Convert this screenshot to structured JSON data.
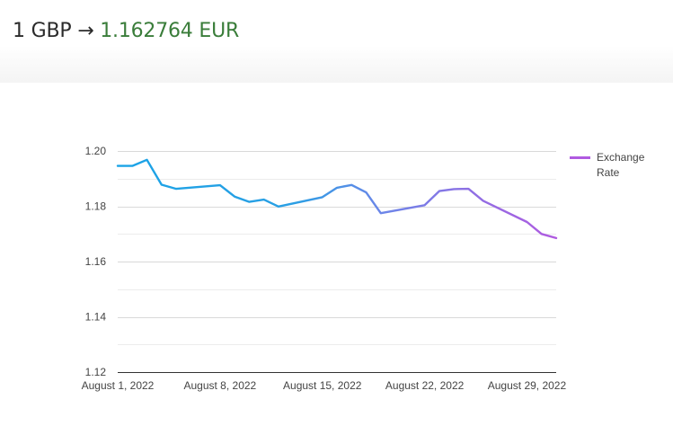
{
  "header": {
    "base": "1 GBP",
    "arrow": "→",
    "quote": "1.162764 EUR"
  },
  "colors": {
    "quote_text": "#3a7d3a",
    "line_start": "#1aa3e6",
    "line_end": "#b05ae0",
    "grid": "#d9d9d9"
  },
  "chart_data": {
    "type": "line",
    "title": "",
    "xlabel": "",
    "ylabel": "",
    "ylim": [
      1.12,
      1.2
    ],
    "yticks": [
      1.12,
      1.14,
      1.16,
      1.18,
      1.2
    ],
    "ytick_labels": [
      "1.12",
      "1.14",
      "1.16",
      "1.18",
      "1.20"
    ],
    "xlim": [
      "2022-08-01",
      "2022-08-31"
    ],
    "xticks": [
      "2022-08-01",
      "2022-08-08",
      "2022-08-15",
      "2022-08-22",
      "2022-08-29"
    ],
    "xtick_labels": [
      "August 1, 2022",
      "August 8, 2022",
      "August 15, 2022",
      "August 22, 2022",
      "August 29, 2022"
    ],
    "legend_position": "right",
    "grid": true,
    "series": [
      {
        "name": "Exchange Rate",
        "x": [
          "2022-08-01",
          "2022-08-02",
          "2022-08-03",
          "2022-08-04",
          "2022-08-05",
          "2022-08-08",
          "2022-08-09",
          "2022-08-10",
          "2022-08-11",
          "2022-08-12",
          "2022-08-15",
          "2022-08-16",
          "2022-08-17",
          "2022-08-18",
          "2022-08-19",
          "2022-08-22",
          "2022-08-23",
          "2022-08-24",
          "2022-08-25",
          "2022-08-26",
          "2022-08-29",
          "2022-08-30",
          "2022-08-31"
        ],
        "y": [
          1.1946,
          1.1946,
          1.1968,
          1.1878,
          1.1863,
          1.1876,
          1.1835,
          1.1816,
          1.1824,
          1.1799,
          1.1833,
          1.1867,
          1.1877,
          1.185,
          1.1775,
          1.1804,
          1.1855,
          1.1862,
          1.1863,
          1.182,
          1.1743,
          1.17,
          1.1685
        ]
      }
    ]
  }
}
